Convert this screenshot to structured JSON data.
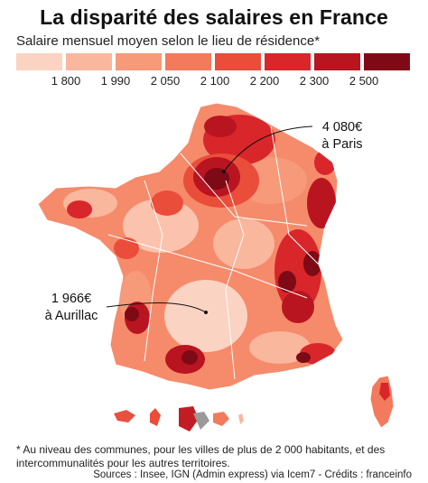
{
  "title": "La disparité des salaires en France",
  "subtitle": "Salaire mensuel moyen selon le lieu de résidence*",
  "legend": {
    "colors": [
      "#fbd3c3",
      "#f9b79d",
      "#f69a7a",
      "#f37a5c",
      "#ea4d39",
      "#d9262a",
      "#b81521",
      "#7e0a16"
    ],
    "ticks": [
      "1 800",
      "1 990",
      "2 050",
      "2 100",
      "2 200",
      "2 300",
      "2 500"
    ]
  },
  "annotations": {
    "paris": {
      "value": "4 080€",
      "place": "à Paris"
    },
    "aurillac": {
      "value": "1 966€",
      "place": "à Aurillac"
    }
  },
  "footnote": "* Au niveau des communes, pour les villes de plus de 2 000 habitants, et des intercommunalités pour les autres territoires.",
  "sources": "Sources : Insee, IGN (Admin express) via Icem7 - Crédits : franceinfo"
}
